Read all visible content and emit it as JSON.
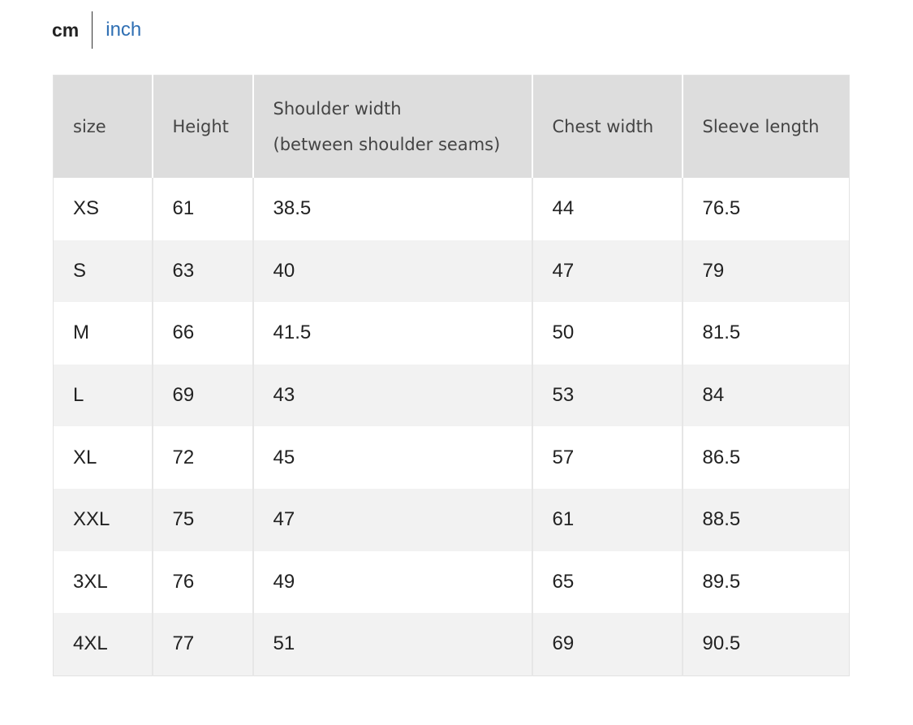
{
  "unit_toggle": {
    "cm_label": "cm",
    "inch_label": "inch",
    "active": "cm",
    "inactive_color": "#2f6fb3"
  },
  "table": {
    "headers": {
      "size": "size",
      "height": "Height",
      "shoulder_line1": "Shoulder width",
      "shoulder_line2": "(between shoulder seams)",
      "chest": "Chest width",
      "sleeve": "Sleeve length"
    },
    "rows": [
      [
        "XS",
        "61",
        "38.5",
        "44",
        "76.5"
      ],
      [
        "S",
        "63",
        "40",
        "47",
        "79"
      ],
      [
        "M",
        "66",
        "41.5",
        "50",
        "81.5"
      ],
      [
        "L",
        "69",
        "43",
        "53",
        "84"
      ],
      [
        "XL",
        "72",
        "45",
        "57",
        "86.5"
      ],
      [
        "XXL",
        "75",
        "47",
        "61",
        "88.5"
      ],
      [
        "3XL",
        "76",
        "49",
        "65",
        "89.5"
      ],
      [
        "4XL",
        "77",
        "51",
        "69",
        "90.5"
      ]
    ]
  }
}
